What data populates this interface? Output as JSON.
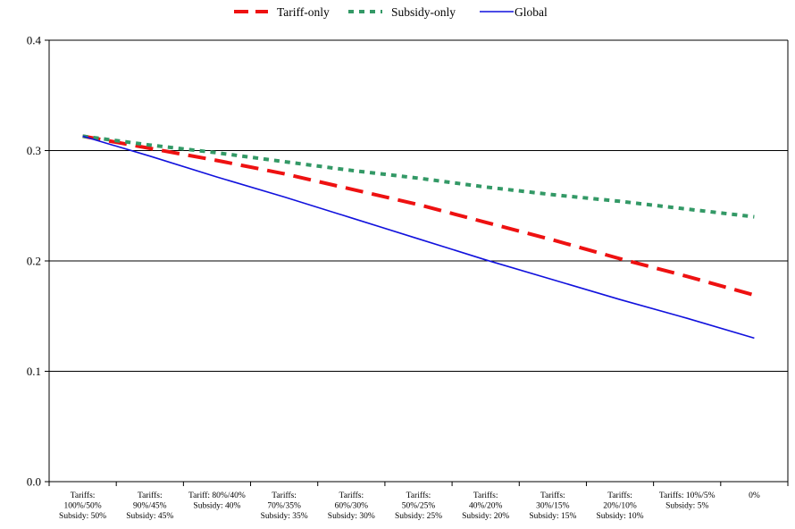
{
  "chart_data": {
    "type": "line",
    "title": "",
    "xlabel": "",
    "ylabel": "",
    "ylim": [
      0.0,
      0.4
    ],
    "yticks": [
      "0.0",
      "0.1",
      "0.2",
      "0.3",
      "0.4"
    ],
    "grid": "horizontal",
    "legend_position": "top",
    "categories": [
      [
        "Tariffs:",
        "100%/50%",
        "Subsidy: 50%"
      ],
      [
        "Tariffs:",
        "90%/45%",
        "Subsidy: 45%"
      ],
      [
        "Tariff: 80%/40%",
        "Subsidy: 40%"
      ],
      [
        "Tariffs:",
        "70%/35%",
        "Subsidy: 35%"
      ],
      [
        "Tariffs:",
        "60%/30%",
        "Subsidy: 30%"
      ],
      [
        "Tariffs:",
        "50%/25%",
        "Subsidy: 25%"
      ],
      [
        "Tariffs:",
        "40%/20%",
        "Subsidy: 20%"
      ],
      [
        "Tariffs:",
        "30%/15%",
        "Subsidy: 15%"
      ],
      [
        "Tariffs:",
        "20%/10%",
        "Subsidy: 10%"
      ],
      [
        "Tariffs: 10%/5%",
        "Subsidy: 5%"
      ],
      [
        "0%"
      ]
    ],
    "series": [
      {
        "name": "Tariff-only",
        "color": "#ee1111",
        "style": "long-dash",
        "values": [
          0.313,
          0.302,
          0.291,
          0.279,
          0.265,
          0.251,
          0.235,
          0.219,
          0.202,
          0.186,
          0.169
        ]
      },
      {
        "name": "Subsidy-only",
        "color": "#339966",
        "style": "short-dash",
        "values": [
          0.313,
          0.305,
          0.298,
          0.29,
          0.282,
          0.275,
          0.267,
          0.26,
          0.254,
          0.247,
          0.24
        ]
      },
      {
        "name": "Global",
        "color": "#1111dd",
        "style": "solid",
        "values": [
          0.313,
          0.295,
          0.276,
          0.258,
          0.239,
          0.22,
          0.201,
          0.183,
          0.165,
          0.148,
          0.13
        ]
      }
    ]
  }
}
